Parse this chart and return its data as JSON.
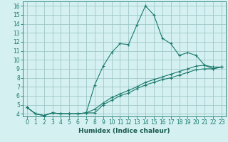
{
  "title": "",
  "xlabel": "Humidex (Indice chaleur)",
  "ylabel": "",
  "bg_color": "#d4f0f0",
  "line_color": "#1a7a6e",
  "grid_color": "#a0c8c8",
  "xlim": [
    -0.5,
    23.5
  ],
  "ylim": [
    3.7,
    16.5
  ],
  "xticks": [
    0,
    1,
    2,
    3,
    4,
    5,
    6,
    7,
    8,
    9,
    10,
    11,
    12,
    13,
    14,
    15,
    16,
    17,
    18,
    19,
    20,
    21,
    22,
    23
  ],
  "yticks": [
    4,
    5,
    6,
    7,
    8,
    9,
    10,
    11,
    12,
    13,
    14,
    15,
    16
  ],
  "line1_x": [
    0,
    1,
    2,
    3,
    4,
    5,
    6,
    7,
    8,
    9,
    10,
    11,
    12,
    13,
    14,
    15,
    16,
    17,
    18,
    19,
    20,
    21,
    22,
    23
  ],
  "line1_y": [
    4.7,
    4.0,
    3.8,
    4.1,
    4.0,
    4.0,
    4.0,
    4.1,
    7.2,
    9.3,
    10.8,
    11.8,
    11.7,
    13.9,
    16.0,
    15.0,
    12.4,
    11.8,
    10.5,
    10.8,
    10.5,
    9.4,
    9.0,
    9.2
  ],
  "line2_x": [
    0,
    1,
    2,
    3,
    4,
    5,
    6,
    7,
    8,
    9,
    10,
    11,
    12,
    13,
    14,
    15,
    16,
    17,
    18,
    19,
    20,
    21,
    22,
    23
  ],
  "line2_y": [
    4.7,
    4.0,
    3.8,
    4.1,
    4.0,
    4.0,
    4.0,
    4.1,
    4.1,
    5.0,
    5.5,
    6.0,
    6.3,
    6.8,
    7.2,
    7.5,
    7.8,
    8.0,
    8.3,
    8.6,
    8.9,
    9.0,
    9.0,
    9.2
  ],
  "line3_x": [
    0,
    1,
    2,
    3,
    4,
    5,
    6,
    7,
    8,
    9,
    10,
    11,
    12,
    13,
    14,
    15,
    16,
    17,
    18,
    19,
    20,
    21,
    22,
    23
  ],
  "line3_y": [
    4.7,
    4.0,
    3.8,
    4.1,
    4.0,
    4.0,
    4.0,
    4.1,
    4.5,
    5.2,
    5.8,
    6.2,
    6.6,
    7.0,
    7.5,
    7.8,
    8.1,
    8.4,
    8.7,
    9.0,
    9.3,
    9.4,
    9.2,
    9.2
  ]
}
